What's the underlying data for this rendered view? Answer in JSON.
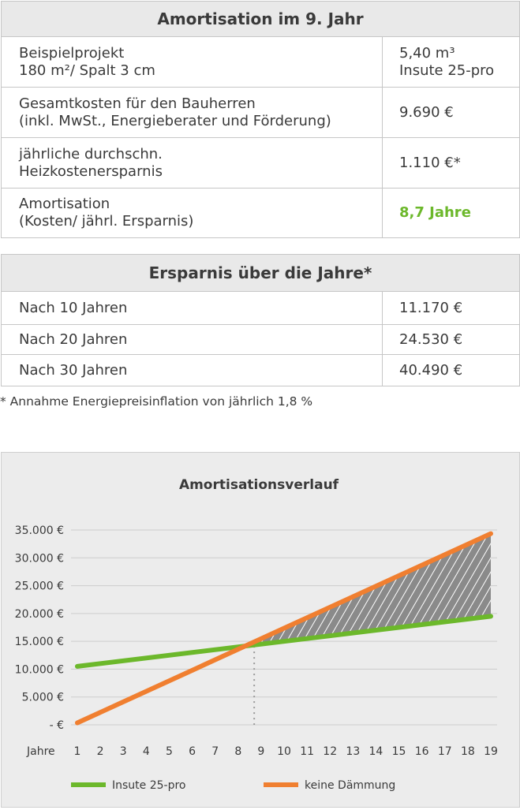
{
  "table1": {
    "title": "Amortisation im 9. Jahr",
    "rows": [
      {
        "label_lines": [
          "Beispielprojekt",
          "180 m²/ Spalt 3 cm"
        ],
        "value_lines": [
          "5,40 m³",
          "Insute 25-pro"
        ]
      },
      {
        "label_lines": [
          "Gesamtkosten für den Bauherren",
          "(inkl. MwSt., Energieberater und Förderung)"
        ],
        "value_lines": [
          "9.690 €"
        ]
      },
      {
        "label_lines": [
          "jährliche durchschn.",
          "Heizkostenersparnis"
        ],
        "value_lines": [
          "1.110 €*"
        ]
      },
      {
        "label_lines": [
          "Amortisation",
          "(Kosten/ jährl. Ersparnis)"
        ],
        "value_lines": [
          "8,7 Jahre"
        ]
      }
    ]
  },
  "table2": {
    "title": "Ersparnis über die Jahre*",
    "rows": [
      {
        "label": "Nach 10 Jahren",
        "value": "11.170 €"
      },
      {
        "label": "Nach 20 Jahren",
        "value": "24.530 €"
      },
      {
        "label": "Nach 30 Jahren",
        "value": "40.490 €"
      }
    ]
  },
  "footnote": "* Annahme Energiepreisinflation von jährlich 1,8 %",
  "colors": {
    "green": "#6cb82b",
    "orange": "#f07f30",
    "hatch": "#8a8a8a"
  },
  "chart_data": {
    "type": "line",
    "title": "Amortisationsverlauf",
    "x_axis_label": "Jahre",
    "x": [
      1,
      2,
      3,
      4,
      5,
      6,
      7,
      8,
      9,
      10,
      11,
      12,
      13,
      14,
      15,
      16,
      17,
      18,
      19
    ],
    "x_tick_labels": [
      "1",
      "2",
      "3",
      "4",
      "5",
      "6",
      "7",
      "8",
      "9",
      "10",
      "11",
      "12",
      "13",
      "14",
      "15",
      "16",
      "17",
      "18",
      "19"
    ],
    "y_ticks": [
      0,
      5000,
      10000,
      15000,
      20000,
      25000,
      30000,
      35000
    ],
    "y_tick_labels": [
      "- €",
      "5.000 €",
      "10.000 €",
      "15.000 €",
      "20.000 €",
      "25.000 €",
      "30.000 €",
      "35.000 €"
    ],
    "ylim": [
      0,
      35000
    ],
    "grid": true,
    "legend_position": "bottom",
    "series": [
      {
        "name": "Insute 25-pro",
        "color": "#6cb82b",
        "points": [
          [
            1,
            10500
          ],
          [
            19,
            19500
          ]
        ]
      },
      {
        "name": "keine Dämmung",
        "color": "#f07f30",
        "points": [
          [
            1,
            350
          ],
          [
            19,
            34350
          ]
        ]
      }
    ],
    "break_even_year": 8.7,
    "shaded_region": "Fläche zwischen den Linien nach dem Schnittpunkt (schraffiert)"
  }
}
